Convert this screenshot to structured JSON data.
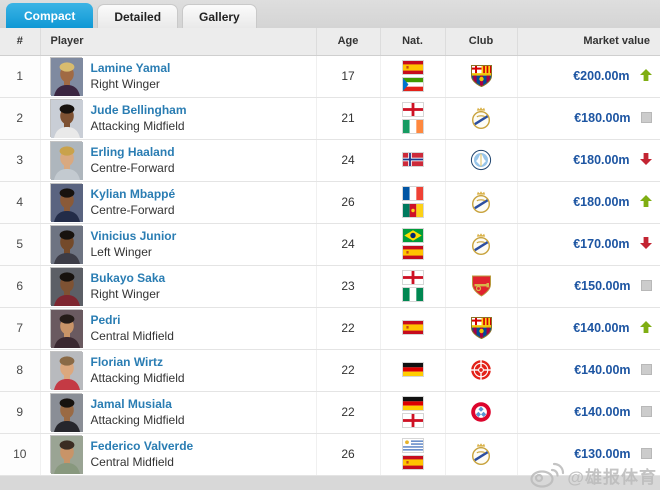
{
  "tabs": [
    {
      "label": "Compact",
      "active": true
    },
    {
      "label": "Detailed",
      "active": false
    },
    {
      "label": "Gallery",
      "active": false
    }
  ],
  "table": {
    "headers": {
      "rank": "#",
      "player": "Player",
      "age": "Age",
      "nat": "Nat.",
      "club": "Club",
      "market_value": "Market value"
    },
    "rows": [
      {
        "rank": "1",
        "name": "Lamine Yamal",
        "position": "Right Winger",
        "age": "17",
        "nations": [
          "Spain",
          "Equatorial Guinea"
        ],
        "club": "FC Barcelona",
        "value": "€200.00m",
        "trend": "up",
        "photo": {
          "bg": "#7f8aa0",
          "jersey": "#3a2540",
          "skin": "#a06a44",
          "hair": "#d8bc6e"
        }
      },
      {
        "rank": "2",
        "name": "Jude Bellingham",
        "position": "Attacking Midfield",
        "age": "21",
        "nations": [
          "England",
          "Ireland"
        ],
        "club": "Real Madrid",
        "value": "€180.00m",
        "trend": "same",
        "photo": {
          "bg": "#c9ced6",
          "jersey": "#e9e9e9",
          "skin": "#7e5233",
          "hair": "#17120e"
        }
      },
      {
        "rank": "3",
        "name": "Erling Haaland",
        "position": "Centre-Forward",
        "age": "24",
        "nations": [
          "Norway"
        ],
        "club": "Manchester City",
        "value": "€180.00m",
        "trend": "down",
        "photo": {
          "bg": "#aeb6bd",
          "jersey": "#c3cad0",
          "skin": "#d9a980",
          "hair": "#c9a24b"
        }
      },
      {
        "rank": "4",
        "name": "Kylian Mbappé",
        "position": "Centre-Forward",
        "age": "26",
        "nations": [
          "France",
          "Cameroon"
        ],
        "club": "Real Madrid",
        "value": "€180.00m",
        "trend": "up",
        "photo": {
          "bg": "#5a6480",
          "jersey": "#232c48",
          "skin": "#8a5a38",
          "hair": "#17120e"
        }
      },
      {
        "rank": "5",
        "name": "Vinicius Junior",
        "position": "Left Winger",
        "age": "24",
        "nations": [
          "Brazil",
          "Spain"
        ],
        "club": "Real Madrid",
        "value": "€170.00m",
        "trend": "down",
        "photo": {
          "bg": "#6e7482",
          "jersey": "#3c3c46",
          "skin": "#744a2a",
          "hair": "#17120e"
        }
      },
      {
        "rank": "6",
        "name": "Bukayo Saka",
        "position": "Right Winger",
        "age": "23",
        "nations": [
          "England",
          "Nigeria"
        ],
        "club": "Arsenal FC",
        "value": "€150.00m",
        "trend": "same",
        "photo": {
          "bg": "#5c5f66",
          "jersey": "#7e2630",
          "skin": "#7e5233",
          "hair": "#17120e"
        }
      },
      {
        "rank": "7",
        "name": "Pedri",
        "position": "Central Midfield",
        "age": "22",
        "nations": [
          "Spain"
        ],
        "club": "FC Barcelona",
        "value": "€140.00m",
        "trend": "up",
        "photo": {
          "bg": "#6a5a60",
          "jersey": "#3a2830",
          "skin": "#c89468",
          "hair": "#241c18"
        }
      },
      {
        "rank": "8",
        "name": "Florian Wirtz",
        "position": "Attacking Midfield",
        "age": "22",
        "nations": [
          "Germany"
        ],
        "club": "Bayer 04 Leverkusen",
        "value": "€140.00m",
        "trend": "same",
        "photo": {
          "bg": "#b8babe",
          "jersey": "#c43a44",
          "skin": "#dca87e",
          "hair": "#8a6a46"
        }
      },
      {
        "rank": "9",
        "name": "Jamal Musiala",
        "position": "Attacking Midfield",
        "age": "22",
        "nations": [
          "Germany",
          "England"
        ],
        "club": "Bayern Munich",
        "value": "€140.00m",
        "trend": "same",
        "photo": {
          "bg": "#8a8e96",
          "jersey": "#26262c",
          "skin": "#9a6a44",
          "hair": "#17120e"
        }
      },
      {
        "rank": "10",
        "name": "Federico Valverde",
        "position": "Central Midfield",
        "age": "26",
        "nations": [
          "Uruguay",
          "Spain"
        ],
        "club": "Real Madrid",
        "value": "€130.00m",
        "trend": "same",
        "photo": {
          "bg": "#9aa494",
          "jersey": "#88987e",
          "skin": "#c89468",
          "hair": "#3a2c22"
        }
      }
    ]
  },
  "watermark": {
    "platform": "weibo",
    "handle": "@雄报体育"
  },
  "colors": {
    "accent": "#1ba1dc",
    "link": "#2a7db3",
    "value": "#1d55a2",
    "up": "#7fae13",
    "down": "#c32432",
    "same": "#cccccc",
    "header-bg": "#ececec",
    "row-border": "#e4e4e4",
    "page-bg": "#d8d8d8"
  }
}
